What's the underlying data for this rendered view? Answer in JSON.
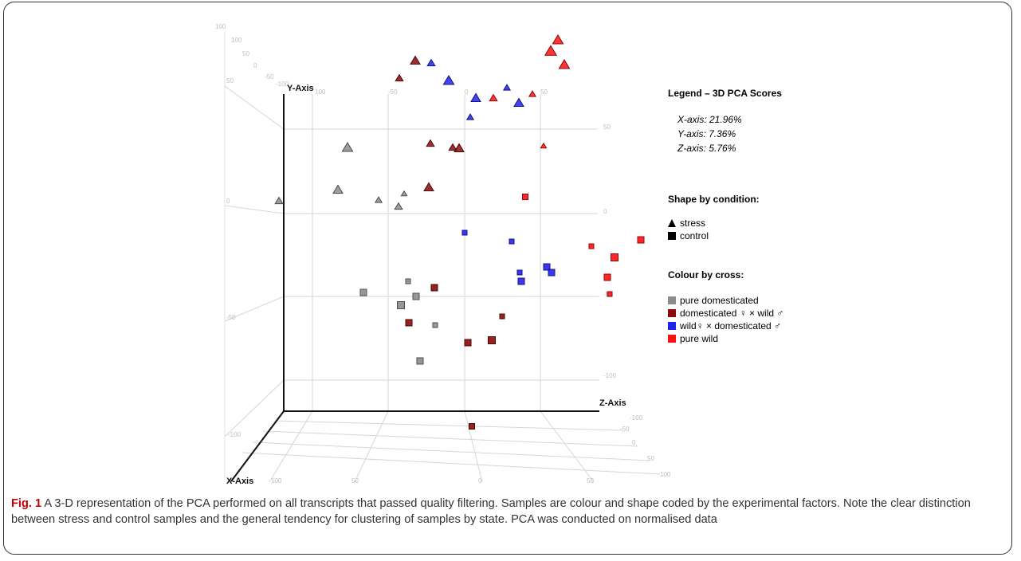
{
  "figure": {
    "label": "Fig. 1",
    "caption": "A 3-D representation of the PCA performed on all transcripts that passed quality filtering. Samples are colour and shape coded by the experimental factors. Note the clear distinction between stress and control samples and the general tendency for clustering of samples by state. PCA was conducted on normalised data"
  },
  "legend": {
    "title": "Legend – 3D PCA Scores",
    "variance": [
      "X-axis: 21.96%",
      "Y-axis: 7.36%",
      "Z-axis: 5.76%"
    ],
    "shape_title": "Shape by condition:",
    "shapes": [
      {
        "label": "stress",
        "shape": "triangle"
      },
      {
        "label": "control",
        "shape": "square"
      }
    ],
    "colour_title": "Colour  by cross:",
    "colours": [
      {
        "label": "pure domesticated",
        "color": "#8c8c8c"
      },
      {
        "label": "domesticated ♀ × wild ♂",
        "color": "#8b0a0a"
      },
      {
        "label": "wild♀ × domesticated ♂",
        "color": "#2222ee"
      },
      {
        "label": "pure wild",
        "color": "#ff1010"
      }
    ]
  },
  "chart_data": {
    "type": "scatter",
    "projection": "3d",
    "axis_titles": {
      "x": "X-Axis",
      "y": "Y-Axis",
      "z": "Z-Axis"
    },
    "y_ticks_left": [
      "100",
      "50",
      "0",
      "-50",
      "-100"
    ],
    "y_ticks_back": [
      "100",
      "50",
      "0",
      "-50",
      "-100"
    ],
    "y_ticks_right": [
      "50",
      "0",
      "-50",
      "-100"
    ],
    "x_ticks_top": [
      "100",
      "50",
      "0",
      "-50",
      "-100"
    ],
    "x_ticks_bottom": [
      "100",
      "50",
      "0",
      "50"
    ],
    "z_ticks_bottom": [
      "-100",
      "-50",
      "0",
      "50",
      "100"
    ],
    "z_ticks_top": [
      "-100",
      "-50",
      "0",
      "50",
      "-100"
    ],
    "series": [
      {
        "name": "pure domesticated",
        "color": "#8c8c8c",
        "points": [
          {
            "shape": "triangle",
            "sx": 436,
            "sy": 185,
            "size": 11
          },
          {
            "shape": "triangle",
            "sx": 424,
            "sy": 238,
            "size": 10
          },
          {
            "shape": "triangle",
            "sx": 350,
            "sy": 252,
            "size": 8
          },
          {
            "shape": "triangle",
            "sx": 475,
            "sy": 251,
            "size": 7
          },
          {
            "shape": "triangle",
            "sx": 507,
            "sy": 243,
            "size": 6
          },
          {
            "shape": "triangle",
            "sx": 500,
            "sy": 259,
            "size": 8
          },
          {
            "shape": "square",
            "sx": 456,
            "sy": 367,
            "size": 8
          },
          {
            "shape": "square",
            "sx": 512,
            "sy": 353,
            "size": 6
          },
          {
            "shape": "square",
            "sx": 522,
            "sy": 372,
            "size": 8
          },
          {
            "shape": "square",
            "sx": 503,
            "sy": 383,
            "size": 9
          },
          {
            "shape": "square",
            "sx": 546,
            "sy": 408,
            "size": 6
          },
          {
            "shape": "square",
            "sx": 527,
            "sy": 453,
            "size": 8
          }
        ]
      },
      {
        "name": "domesticated ♀ × wild ♂",
        "color": "#8b0a0a",
        "points": [
          {
            "shape": "triangle",
            "sx": 521,
            "sy": 76,
            "size": 10
          },
          {
            "shape": "triangle",
            "sx": 501,
            "sy": 98,
            "size": 8
          },
          {
            "shape": "triangle",
            "sx": 540,
            "sy": 180,
            "size": 8
          },
          {
            "shape": "triangle",
            "sx": 568,
            "sy": 185,
            "size": 8
          },
          {
            "shape": "triangle",
            "sx": 576,
            "sy": 186,
            "size": 10
          },
          {
            "shape": "triangle",
            "sx": 538,
            "sy": 235,
            "size": 10
          },
          {
            "shape": "square",
            "sx": 545,
            "sy": 361,
            "size": 8
          },
          {
            "shape": "square",
            "sx": 513,
            "sy": 405,
            "size": 8
          },
          {
            "shape": "square",
            "sx": 630,
            "sy": 397,
            "size": 6
          },
          {
            "shape": "square",
            "sx": 587,
            "sy": 430,
            "size": 8
          },
          {
            "shape": "square",
            "sx": 617,
            "sy": 427,
            "size": 9
          },
          {
            "shape": "square",
            "sx": 592,
            "sy": 535,
            "size": 7
          }
        ]
      },
      {
        "name": "wild♀ × domesticated ♂",
        "color": "#2222ee",
        "points": [
          {
            "shape": "triangle",
            "sx": 541,
            "sy": 79,
            "size": 8
          },
          {
            "shape": "triangle",
            "sx": 563,
            "sy": 101,
            "size": 11
          },
          {
            "shape": "triangle",
            "sx": 597,
            "sy": 123,
            "size": 10
          },
          {
            "shape": "triangle",
            "sx": 636,
            "sy": 110,
            "size": 7
          },
          {
            "shape": "triangle",
            "sx": 651,
            "sy": 129,
            "size": 10
          },
          {
            "shape": "triangle",
            "sx": 590,
            "sy": 147,
            "size": 7
          },
          {
            "shape": "square",
            "sx": 583,
            "sy": 292,
            "size": 6
          },
          {
            "shape": "square",
            "sx": 642,
            "sy": 303,
            "size": 6
          },
          {
            "shape": "square",
            "sx": 652,
            "sy": 342,
            "size": 6
          },
          {
            "shape": "square",
            "sx": 654,
            "sy": 353,
            "size": 8
          },
          {
            "shape": "square",
            "sx": 686,
            "sy": 335,
            "size": 8
          },
          {
            "shape": "square",
            "sx": 692,
            "sy": 342,
            "size": 8
          }
        ]
      },
      {
        "name": "pure wild",
        "color": "#ff1010",
        "points": [
          {
            "shape": "triangle",
            "sx": 700,
            "sy": 50,
            "size": 11
          },
          {
            "shape": "triangle",
            "sx": 691,
            "sy": 64,
            "size": 12
          },
          {
            "shape": "triangle",
            "sx": 708,
            "sy": 81,
            "size": 11
          },
          {
            "shape": "triangle",
            "sx": 668,
            "sy": 118,
            "size": 7
          },
          {
            "shape": "triangle",
            "sx": 619,
            "sy": 123,
            "size": 8
          },
          {
            "shape": "triangle",
            "sx": 682,
            "sy": 183,
            "size": 6
          },
          {
            "shape": "square",
            "sx": 659,
            "sy": 247,
            "size": 7
          },
          {
            "shape": "square",
            "sx": 742,
            "sy": 309,
            "size": 6
          },
          {
            "shape": "square",
            "sx": 804,
            "sy": 301,
            "size": 8
          },
          {
            "shape": "square",
            "sx": 771,
            "sy": 323,
            "size": 9
          },
          {
            "shape": "square",
            "sx": 762,
            "sy": 348,
            "size": 8
          },
          {
            "shape": "square",
            "sx": 765,
            "sy": 369,
            "size": 6
          }
        ]
      }
    ]
  }
}
